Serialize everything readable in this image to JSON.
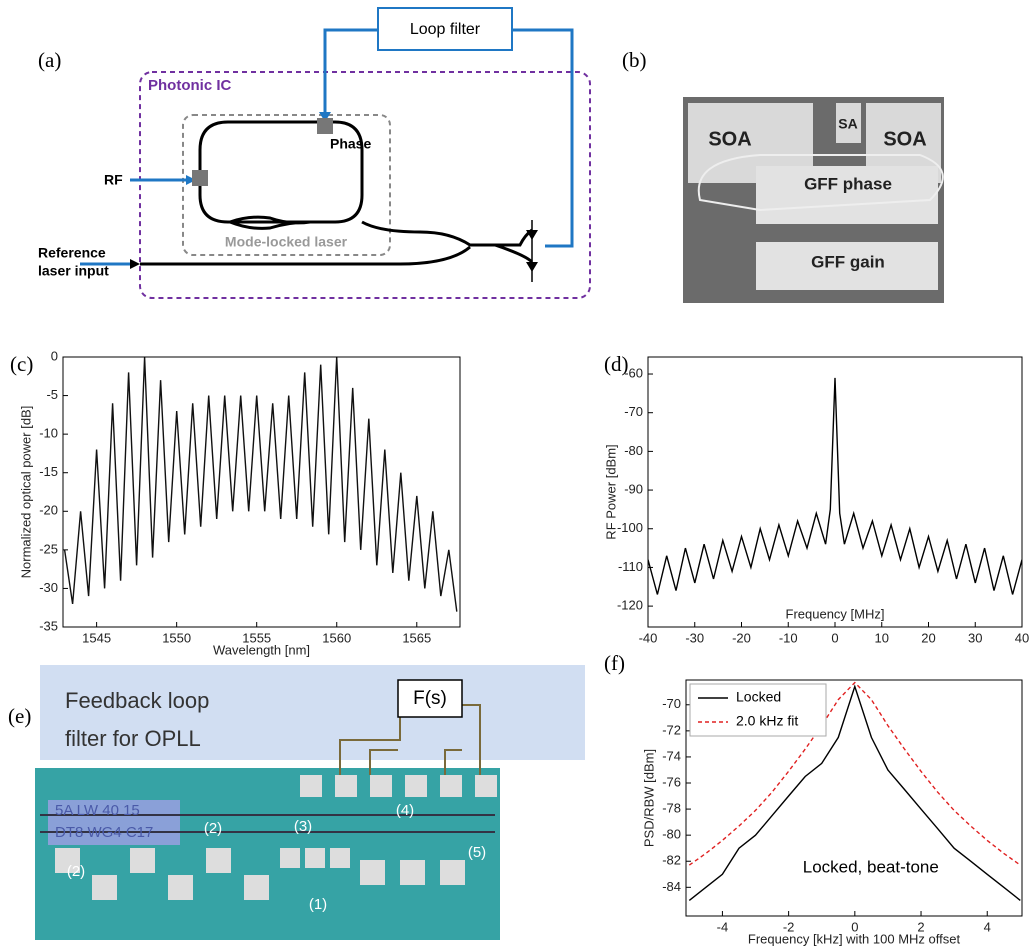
{
  "panel_labels": [
    "(a)",
    "(b)",
    "(c)",
    "(d)",
    "(e)",
    "(f)"
  ],
  "diagram_a": {
    "loop_filter": "Loop filter",
    "photonic_ic": "Photonic IC",
    "phase": "Phase",
    "rf": "RF",
    "mode_locked_laser": "Mode-locked laser",
    "reference_input": [
      "Reference",
      "laser input"
    ]
  },
  "photo_b": {
    "labels": [
      "SOA",
      "SA",
      "SOA",
      "GFF phase",
      "GFF gain"
    ]
  },
  "photo_e": {
    "overlay_text": [
      "Feedback loop",
      "filter for OPLL"
    ],
    "filter": "F(s)",
    "chip_marking": [
      "5A LW 40 15",
      "DT8 WG4 C17"
    ],
    "callouts": [
      "(1)",
      "(2)",
      "(2)",
      "(3)",
      "(4)",
      "(5)"
    ]
  },
  "chart_data": [
    {
      "type": "line",
      "xlabel": "Wavelength [nm]",
      "ylabel": "Normalized optical power [dB]",
      "color": "#111111",
      "x": [
        1543,
        1543.5,
        1544,
        1544.5,
        1545,
        1545.5,
        1546,
        1546.5,
        1547,
        1547.5,
        1548,
        1548.5,
        1549,
        1549.5,
        1550,
        1550.5,
        1551,
        1551.5,
        1552,
        1552.5,
        1553,
        1553.5,
        1554,
        1554.5,
        1555,
        1555.5,
        1556,
        1556.5,
        1557,
        1557.5,
        1558,
        1558.5,
        1559,
        1559.5,
        1560,
        1560.5,
        1561,
        1561.5,
        1562,
        1562.5,
        1563,
        1563.5,
        1564,
        1564.5,
        1565,
        1565.5,
        1566,
        1566.5,
        1567,
        1567.5
      ],
      "values": [
        -25,
        -32,
        -20,
        -31,
        -12,
        -30,
        -6,
        -29,
        -2,
        -27,
        0,
        -26,
        -3,
        -24,
        -7,
        -23,
        -6,
        -22,
        -5,
        -21,
        -5,
        -20,
        -5,
        -20,
        -5,
        -20,
        -6,
        -21,
        -5,
        -21,
        -2,
        -22,
        -1,
        -23,
        0,
        -24,
        -4,
        -25,
        -8,
        -27,
        -12,
        -28,
        -15,
        -29,
        -18,
        -30,
        -20,
        -31,
        -25,
        -33
      ],
      "xlim": [
        1542.9,
        1567.7
      ],
      "ylim": [
        -35,
        0
      ],
      "xticks": [
        1545,
        1550,
        1555,
        1560,
        1565
      ],
      "yticks": [
        -35,
        -30,
        -25,
        -20,
        -15,
        -10,
        -5,
        0
      ]
    },
    {
      "type": "line",
      "xlabel": "Frequency [MHz]",
      "ylabel": "RF Power [dBm]",
      "color": "#000000",
      "x": [
        -40,
        -38,
        -36,
        -34,
        -32,
        -30,
        -28,
        -26,
        -24,
        -22,
        -20,
        -18,
        -16,
        -14,
        -12,
        -10,
        -8,
        -6,
        -4,
        -2,
        -1,
        0,
        1,
        2,
        4,
        6,
        8,
        10,
        12,
        14,
        16,
        18,
        20,
        22,
        24,
        26,
        28,
        30,
        32,
        34,
        36,
        38,
        40
      ],
      "values": [
        -108,
        -117,
        -107,
        -116,
        -105,
        -114,
        -104,
        -113,
        -103,
        -111,
        -102,
        -110,
        -100,
        -108,
        -99,
        -107,
        -98,
        -105,
        -96,
        -104,
        -95,
        -61,
        -96,
        -104,
        -96,
        -105,
        -98,
        -107,
        -99,
        -108,
        -100,
        -110,
        -102,
        -111,
        -103,
        -113,
        -104,
        -114,
        -105,
        -116,
        -107,
        -117,
        -108
      ],
      "xlim": [
        -40,
        40
      ],
      "ylim": [
        -125.4,
        -55.6
      ],
      "xticks": [
        -40,
        -30,
        -20,
        -10,
        0,
        10,
        20,
        30,
        40
      ],
      "yticks": [
        -120,
        -110,
        -100,
        -90,
        -80,
        -70,
        -60
      ]
    },
    {
      "type": "line",
      "xlabel": "Frequency [kHz] with 100 MHz offset",
      "ylabel": "PSD/RBW [dBm]",
      "annotation": "Locked, beat-tone",
      "legend": "upper left",
      "x": [
        -5,
        -4.5,
        -4,
        -3.5,
        -3,
        -2.5,
        -2,
        -1.5,
        -1,
        -0.5,
        0,
        0.5,
        1,
        1.5,
        2,
        2.5,
        3,
        3.5,
        4,
        4.5,
        5
      ],
      "series": [
        {
          "name": "Locked",
          "color": "#000000",
          "linestyle": "solid",
          "values": [
            -85,
            -84,
            -83,
            -81,
            -80,
            -78.5,
            -77,
            -75.5,
            -74.5,
            -72.5,
            -68.6,
            -72.5,
            -75,
            -76.5,
            -78,
            -79.5,
            -81,
            -82,
            -83,
            -84,
            -85
          ]
        },
        {
          "name": "2.0 kHz fit",
          "color": "#e02020",
          "linestyle": "dashed",
          "values": [
            -82.3,
            -81.4,
            -80.4,
            -79.3,
            -78.1,
            -76.7,
            -75.1,
            -73.4,
            -71.6,
            -69.6,
            -68.3,
            -69.6,
            -71.6,
            -73.4,
            -75.1,
            -76.7,
            -78.1,
            -79.3,
            -80.4,
            -81.4,
            -82.3
          ]
        }
      ],
      "xlim": [
        -5.1,
        5.05
      ],
      "ylim": [
        -86.2,
        -68.1
      ],
      "xticks": [
        -4,
        -2,
        0,
        2,
        4
      ],
      "yticks": [
        -84,
        -82,
        -80,
        -78,
        -76,
        -74,
        -72,
        -70
      ]
    }
  ]
}
